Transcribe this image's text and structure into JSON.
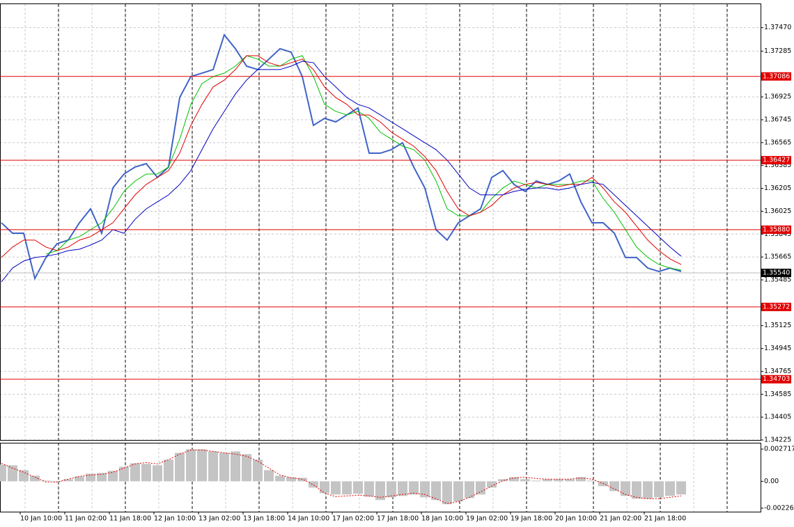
{
  "chart_data": [
    {
      "type": "line",
      "categories": [
        null,
        null,
        "10 Jan 10:00",
        null,
        null,
        null,
        "11 Jan 02:00",
        null,
        null,
        null,
        "11 Jan 18:00",
        null,
        null,
        null,
        "12 Jan 10:00",
        null,
        null,
        null,
        "13 Jan 02:00",
        null,
        null,
        null,
        "13 Jan 18:00",
        null,
        null,
        null,
        "14 Jan 10:00",
        null,
        null,
        null,
        "17 Jan 02:00",
        null,
        null,
        null,
        "17 Jan 18:00",
        null,
        null,
        null,
        "18 Jan 10:00",
        null,
        null,
        null,
        "19 Jan 02:00",
        null,
        null,
        null,
        "19 Jan 18:00",
        null,
        null,
        null,
        "20 Jan 10:00",
        null,
        null,
        null,
        "21 Jan 02:00",
        null,
        null,
        null,
        "21 Jan 18:00",
        null,
        null,
        null
      ],
      "series": [
        {
          "color": "#3f63c8",
          "width": 2,
          "values": [
            1.35934,
            1.35852,
            1.35852,
            1.35496,
            1.35661,
            1.3577,
            1.35798,
            1.35934,
            1.36044,
            1.35852,
            1.36208,
            1.36318,
            1.36373,
            1.364,
            1.36291,
            1.36373,
            1.3692,
            1.37085,
            1.37112,
            1.3714,
            1.37413,
            1.37304,
            1.37167,
            1.3714,
            1.37222,
            1.37304,
            1.37277,
            1.37085,
            1.36701,
            1.36756,
            1.36728,
            1.36783,
            1.36838,
            1.36482,
            1.36482,
            1.3651,
            1.36564,
            1.36373,
            1.36208,
            1.3588,
            1.35798,
            1.35934,
            1.35989,
            1.36044,
            1.36291,
            1.36345,
            1.36236,
            1.36181,
            1.36263,
            1.36236,
            1.36263,
            1.36318,
            1.36099,
            1.35934,
            1.35934,
            1.35852,
            1.35661,
            1.35661,
            1.35578,
            1.35551,
            1.35578,
            1.35551
          ]
        },
        {
          "color": "#00c000",
          "width": 1,
          "values": [
            null,
            null,
            null,
            null,
            1.35688,
            1.35715,
            1.35798,
            1.35825,
            1.3588,
            1.35934,
            1.36044,
            1.36181,
            1.36263,
            1.36318,
            1.36318,
            1.36373,
            1.36592,
            1.36866,
            1.3703,
            1.37085,
            1.37112,
            1.37167,
            1.37249,
            1.37222,
            1.37167,
            1.37167,
            1.37222,
            1.37249,
            1.37085,
            1.36866,
            1.36811,
            1.36783,
            1.36811,
            1.36756,
            1.36647,
            1.36592,
            1.36537,
            1.3651,
            1.36427,
            1.36263,
            1.36044,
            1.35989,
            1.35989,
            1.36017,
            1.36126,
            1.36208,
            1.36263,
            1.36236,
            1.36208,
            1.36236,
            1.36236,
            1.36236,
            1.36263,
            1.36263,
            1.36126,
            1.36017,
            1.3588,
            1.35743,
            1.35661,
            1.35606,
            1.35578,
            1.35562
          ]
        },
        {
          "color": "#e00000",
          "width": 1,
          "values": [
            1.35661,
            1.35743,
            1.35798,
            1.35798,
            1.35743,
            1.35715,
            1.35743,
            1.35798,
            1.35825,
            1.3588,
            1.35934,
            1.36044,
            1.36154,
            1.36236,
            1.36291,
            1.36345,
            1.36482,
            1.36701,
            1.36866,
            1.37003,
            1.37057,
            1.3714,
            1.37249,
            1.37249,
            1.37194,
            1.37167,
            1.37194,
            1.37222,
            1.3714,
            1.37003,
            1.3692,
            1.36866,
            1.36783,
            1.36783,
            1.36728,
            1.36647,
            1.36592,
            1.36537,
            1.36455,
            1.36345,
            1.36181,
            1.36044,
            1.35989,
            1.36017,
            1.36071,
            1.36154,
            1.36208,
            1.36236,
            1.36252,
            1.36236,
            1.36219,
            1.36236,
            1.36236,
            1.36291,
            1.36208,
            1.36099,
            1.36017,
            1.35907,
            1.35798,
            1.35715,
            1.3565,
            1.35606
          ]
        },
        {
          "color": "#0000c0",
          "width": 1,
          "values": [
            1.35469,
            1.35578,
            1.35633,
            1.35661,
            1.35671,
            1.35688,
            1.35715,
            1.35726,
            1.35759,
            1.35798,
            1.3588,
            1.35852,
            1.35962,
            1.36044,
            1.36099,
            1.36154,
            1.36236,
            1.36345,
            1.3651,
            1.36674,
            1.36811,
            1.36948,
            1.37057,
            1.3714,
            1.3714,
            1.3714,
            1.37167,
            1.37205,
            1.37194,
            1.37085,
            1.37003,
            1.3692,
            1.36866,
            1.36838,
            1.36783,
            1.36728,
            1.36674,
            1.36619,
            1.36564,
            1.3651,
            1.36427,
            1.36318,
            1.36208,
            1.36154,
            1.36154,
            1.36154,
            1.36181,
            1.36197,
            1.36208,
            1.36208,
            1.36192,
            1.36208,
            1.36236,
            1.36252,
            1.36236,
            1.36154,
            1.36071,
            1.35989,
            1.35907,
            1.35825,
            1.35743,
            1.35671
          ]
        }
      ],
      "ylim": [
        1.34225,
        1.3766
      ],
      "yticks": [
        {
          "value": 1.3747,
          "label": "1.37470"
        },
        1.37285,
        1.36925,
        1.36745,
        1.36565,
        1.36385,
        1.36205,
        1.36025,
        1.35845,
        1.35665,
        1.35485,
        1.35125,
        1.34945,
        1.34765,
        1.34585,
        1.34405,
        1.34225
      ],
      "grid": true,
      "levels": [
        1.37086,
        1.36427,
        {
          "value": 1.3588,
          "label": "1.35880"
        },
        1.35272,
        1.34703
      ],
      "level_color": "#e00000",
      "current_price": {
        "value": 1.3554,
        "label": "1.35540"
      }
    },
    {
      "type": "bar",
      "series": [
        {
          "type": "bar",
          "color": "#c4c4c4",
          "values": [
            0.00141,
            0.00135,
            0.00094,
            0.00047,
            6e-05,
            -6e-05,
            0.00018,
            0.00041,
            0.00064,
            0.0007,
            0.00088,
            0.00123,
            0.00152,
            0.00147,
            0.00135,
            0.00182,
            0.0024,
            0.0027,
            0.0027,
            0.00252,
            0.0024,
            0.00252,
            0.00229,
            0.00182,
            0.00094,
            0.00047,
            0.00035,
            0.00029,
            -0.00053,
            -0.001,
            -0.00111,
            -0.00111,
            -0.00105,
            -0.00129,
            -0.00158,
            -0.00135,
            -0.00123,
            -0.00111,
            -0.00135,
            -0.00158,
            -0.00193,
            -0.0017,
            -0.00141,
            -0.00111,
            -0.00053,
            0.00018,
            0.00035,
            0.00018,
            6e-05,
            0.00018,
            0.00018,
            0.00018,
            0.00035,
            6e-05,
            -0.00041,
            -0.00082,
            -0.00123,
            -0.00147,
            -0.00147,
            -0.00135,
            -0.00123,
            -0.00111
          ]
        },
        {
          "type": "line",
          "color": "#e00000",
          "dashed": true,
          "values": [
            0.00152,
            0.00111,
            0.00076,
            0.00035,
            -6e-05,
            -6e-05,
            0.00018,
            0.00041,
            0.00053,
            0.00059,
            0.00076,
            0.00111,
            0.00147,
            0.00158,
            0.00147,
            0.00182,
            0.00229,
            0.00264,
            0.00264,
            0.00252,
            0.0024,
            0.00229,
            0.00211,
            0.0017,
            0.00111,
            0.00053,
            0.00029,
            0.00018,
            -0.00029,
            -0.001,
            -0.00129,
            -0.00123,
            -0.00117,
            -0.00123,
            -0.00135,
            -0.00123,
            -0.00111,
            -0.001,
            -0.00111,
            -0.00147,
            -0.00188,
            -0.0017,
            -0.00135,
            -0.00088,
            -0.00041,
            6e-05,
            0.00029,
            0.00035,
            0.00023,
            0.00018,
            0.00018,
            0.00018,
            0.00029,
            0.00018,
            -0.00018,
            -0.00064,
            -0.00111,
            -0.00135,
            -0.00147,
            -0.00147,
            -0.00135,
            -0.00123
          ]
        }
      ],
      "ylim": [
        -0.00256,
        0.00319
      ],
      "yticks": [
        0.002717,
        {
          "value": 0,
          "label": "0.00"
        },
        -0.002263
      ]
    }
  ]
}
